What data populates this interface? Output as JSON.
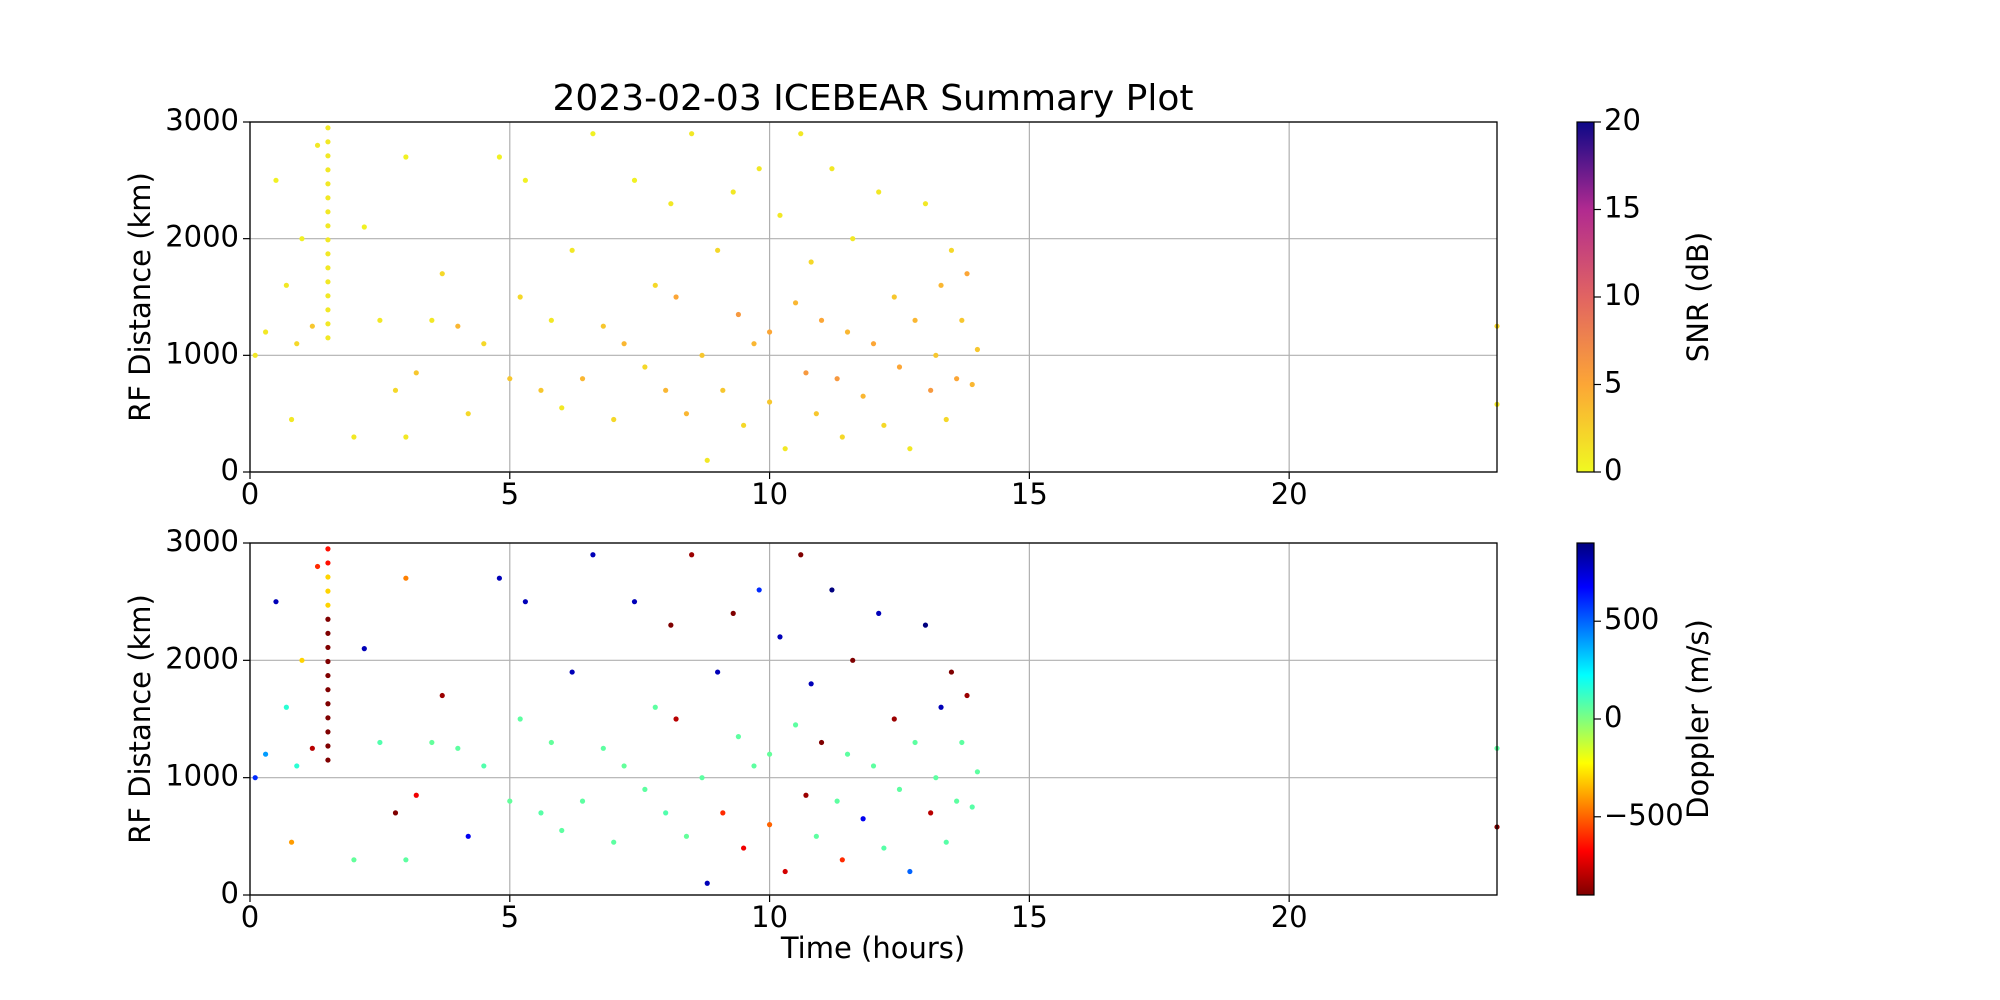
{
  "chart_data": [
    {
      "type": "scatter",
      "title": "2023-02-03 ICEBEAR Summary Plot",
      "ylabel": "RF Distance (km)",
      "xlim": [
        0,
        24
      ],
      "ylim": [
        0,
        3000
      ],
      "xticks": [
        0,
        5,
        10,
        15,
        20
      ],
      "yticks": [
        0,
        1000,
        2000,
        3000
      ],
      "grid": true,
      "colormap": "plasma_r",
      "colorbar": {
        "label": "SNR (dB)",
        "lim": [
          0,
          20
        ],
        "ticks": [
          0,
          5,
          10,
          15,
          20
        ]
      },
      "x": [
        1.5,
        1.5,
        1.5,
        1.5,
        1.5,
        1.5,
        1.5,
        1.5,
        1.5,
        1.5,
        1.5,
        1.5,
        1.5,
        1.5,
        1.5,
        1.5,
        0.1,
        0.3,
        0.5,
        0.7,
        0.8,
        0.9,
        1.0,
        1.2,
        1.3,
        2.0,
        2.2,
        2.5,
        2.8,
        3.0,
        3.0,
        3.2,
        3.5,
        3.7,
        4.0,
        4.2,
        4.5,
        4.8,
        5.0,
        5.2,
        5.3,
        5.6,
        5.8,
        6.0,
        6.2,
        6.4,
        6.6,
        6.8,
        7.0,
        7.2,
        7.4,
        7.6,
        7.8,
        8.0,
        8.1,
        8.2,
        8.4,
        8.5,
        8.7,
        8.8,
        9.0,
        9.1,
        9.3,
        9.4,
        9.5,
        9.7,
        9.8,
        10.0,
        10.0,
        10.2,
        10.3,
        10.5,
        10.6,
        10.7,
        10.8,
        10.9,
        11.0,
        11.2,
        11.3,
        11.4,
        11.5,
        11.6,
        11.8,
        12.0,
        12.1,
        12.2,
        12.4,
        12.5,
        12.7,
        12.8,
        13.0,
        13.1,
        13.2,
        13.3,
        13.4,
        13.5,
        13.6,
        13.7,
        13.8,
        13.9,
        14.0,
        24,
        24
      ],
      "y": [
        1150,
        1270,
        1390,
        1510,
        1630,
        1750,
        1870,
        1990,
        2110,
        2230,
        2350,
        2470,
        2590,
        2710,
        2830,
        2950,
        1000,
        1200,
        2500,
        1600,
        450,
        1100,
        2000,
        1250,
        2800,
        300,
        2100,
        1300,
        700,
        300,
        2700,
        850,
        1300,
        1700,
        1250,
        500,
        1100,
        2700,
        800,
        1500,
        2500,
        700,
        1300,
        550,
        1900,
        800,
        2900,
        1250,
        450,
        1100,
        2500,
        900,
        1600,
        700,
        2300,
        1500,
        500,
        2900,
        1000,
        100,
        1900,
        700,
        2400,
        1350,
        400,
        1100,
        2600,
        1200,
        600,
        2200,
        200,
        1450,
        2900,
        850,
        1800,
        500,
        1300,
        2600,
        800,
        300,
        1200,
        2000,
        650,
        1100,
        2400,
        400,
        1500,
        900,
        200,
        1300,
        2300,
        700,
        1000,
        1600,
        450,
        1900,
        800,
        1300,
        1700,
        750,
        1050,
        1250,
        580
      ],
      "c": [
        1,
        1,
        1,
        1,
        1,
        1,
        1,
        1,
        1,
        1,
        1,
        1,
        1,
        1,
        1,
        1,
        1,
        1,
        0.5,
        1,
        1,
        2,
        0.5,
        3,
        1,
        1,
        0.5,
        1,
        2,
        1,
        0.5,
        3,
        1,
        2,
        4,
        2,
        2,
        0.5,
        3,
        2,
        0.5,
        3,
        1,
        1,
        1,
        4,
        0.5,
        3,
        2,
        4,
        0.5,
        2,
        2,
        4,
        1,
        5,
        4,
        1,
        3,
        1,
        2,
        3,
        1,
        6,
        2,
        4,
        1,
        5,
        3,
        1,
        1,
        4,
        1,
        6,
        2,
        3,
        5,
        1,
        6,
        2,
        4,
        1,
        4,
        5,
        1,
        2,
        3,
        5,
        1,
        4,
        1,
        6,
        3,
        4,
        2,
        2,
        5,
        3,
        5,
        4,
        3,
        2,
        1
      ]
    },
    {
      "type": "scatter",
      "ylabel": "RF Distance (km)",
      "xlabel": "Time (hours)",
      "xlim": [
        0,
        24
      ],
      "ylim": [
        0,
        3000
      ],
      "xticks": [
        0,
        5,
        10,
        15,
        20
      ],
      "yticks": [
        0,
        1000,
        2000,
        3000
      ],
      "grid": true,
      "colormap": "jet_r",
      "colorbar": {
        "label": "Doppler (m/s)",
        "lim": [
          -900,
          900
        ],
        "ticks": [
          {
            "value": -500,
            "label": "−500"
          },
          0,
          500
        ]
      },
      "x": [
        1.5,
        1.5,
        1.5,
        1.5,
        1.5,
        1.5,
        1.5,
        1.5,
        1.5,
        1.5,
        1.5,
        1.5,
        1.5,
        1.5,
        1.5,
        1.5,
        0.1,
        0.3,
        0.5,
        0.7,
        0.8,
        0.9,
        1.0,
        1.2,
        1.3,
        2.0,
        2.2,
        2.5,
        2.8,
        3.0,
        3.0,
        3.2,
        3.5,
        3.7,
        4.0,
        4.2,
        4.5,
        4.8,
        5.0,
        5.2,
        5.3,
        5.6,
        5.8,
        6.0,
        6.2,
        6.4,
        6.6,
        6.8,
        7.0,
        7.2,
        7.4,
        7.6,
        7.8,
        8.0,
        8.1,
        8.2,
        8.4,
        8.5,
        8.7,
        8.8,
        9.0,
        9.1,
        9.3,
        9.4,
        9.5,
        9.7,
        9.8,
        10.0,
        10.0,
        10.2,
        10.3,
        10.5,
        10.6,
        10.7,
        10.8,
        10.9,
        11.0,
        11.2,
        11.3,
        11.4,
        11.5,
        11.6,
        11.8,
        12.0,
        12.1,
        12.2,
        12.4,
        12.5,
        12.7,
        12.8,
        13.0,
        13.1,
        13.2,
        13.3,
        13.4,
        13.5,
        13.6,
        13.7,
        13.8,
        13.9,
        14.0,
        24,
        24
      ],
      "y": [
        1150,
        1270,
        1390,
        1510,
        1630,
        1750,
        1870,
        1990,
        2110,
        2230,
        2350,
        2470,
        2590,
        2710,
        2830,
        2950,
        1000,
        1200,
        2500,
        1600,
        450,
        1100,
        2000,
        1250,
        2800,
        300,
        2100,
        1300,
        700,
        300,
        2700,
        850,
        1300,
        1700,
        1250,
        500,
        1100,
        2700,
        800,
        1500,
        2500,
        700,
        1300,
        550,
        1900,
        800,
        2900,
        1250,
        450,
        1100,
        2500,
        900,
        1600,
        700,
        2300,
        1500,
        500,
        2900,
        1000,
        100,
        1900,
        700,
        2400,
        1350,
        400,
        1100,
        2600,
        1200,
        600,
        2200,
        200,
        1450,
        2900,
        850,
        1800,
        500,
        1300,
        2600,
        800,
        300,
        1200,
        2000,
        650,
        1100,
        2400,
        400,
        1500,
        900,
        200,
        1300,
        2300,
        700,
        1000,
        1600,
        450,
        1900,
        800,
        1300,
        1700,
        750,
        1050,
        1250,
        580
      ],
      "c": [
        -900,
        -900,
        -900,
        -900,
        -900,
        -900,
        -900,
        -900,
        -900,
        -900,
        -900,
        -300,
        -300,
        -300,
        -650,
        -650,
        600,
        400,
        800,
        150,
        -400,
        150,
        -300,
        -800,
        -600,
        50,
        800,
        80,
        -900,
        60,
        -450,
        -700,
        50,
        -850,
        60,
        700,
        80,
        800,
        50,
        60,
        800,
        70,
        50,
        60,
        800,
        60,
        800,
        60,
        60,
        50,
        800,
        60,
        60,
        80,
        -900,
        -800,
        50,
        -850,
        60,
        800,
        800,
        -600,
        -900,
        60,
        -700,
        60,
        600,
        50,
        -500,
        800,
        -750,
        60,
        -900,
        -850,
        800,
        60,
        -900,
        900,
        60,
        -600,
        60,
        -900,
        700,
        60,
        800,
        70,
        -850,
        60,
        500,
        60,
        900,
        -800,
        60,
        800,
        70,
        -900,
        60,
        60,
        -850,
        70,
        60,
        60,
        -900
      ]
    }
  ]
}
